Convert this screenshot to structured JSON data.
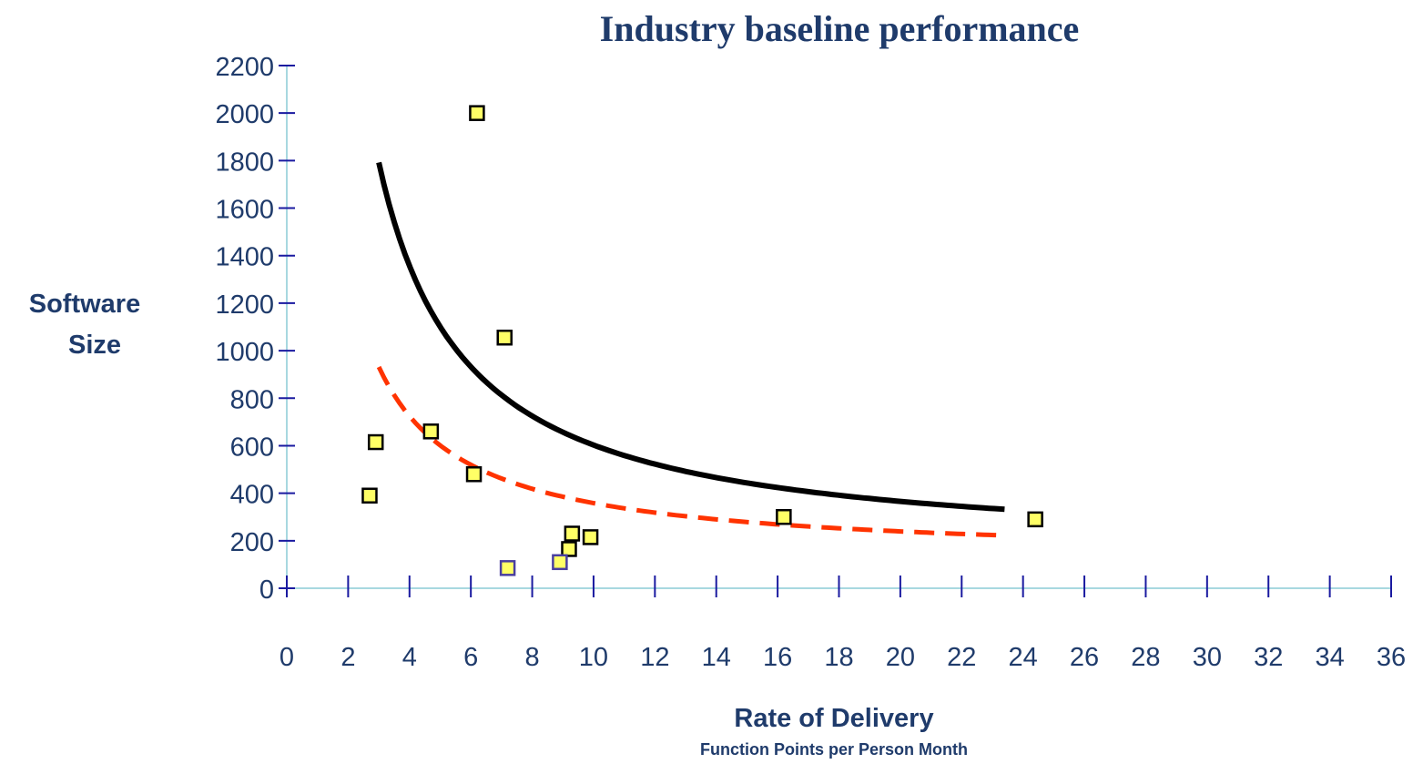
{
  "chart_data": {
    "type": "scatter",
    "title": "Industry baseline performance",
    "ylabel_line1": "Software",
    "ylabel_line2": "Size",
    "xlabel": "Rate of Delivery",
    "xlabel_sub": "Function Points per Person Month",
    "xlim": [
      0,
      36
    ],
    "ylim": [
      0,
      2200
    ],
    "x_ticks": [
      0,
      2,
      4,
      6,
      8,
      10,
      12,
      14,
      16,
      18,
      20,
      22,
      24,
      26,
      28,
      30,
      32,
      34,
      36
    ],
    "y_ticks": [
      0,
      200,
      400,
      600,
      800,
      1000,
      1200,
      1400,
      1600,
      1800,
      2000,
      2200
    ],
    "grid": false,
    "points": [
      {
        "x": 6.2,
        "y": 2000,
        "edge": "#000000"
      },
      {
        "x": 7.1,
        "y": 1055,
        "edge": "#000000"
      },
      {
        "x": 2.9,
        "y": 615,
        "edge": "#000000"
      },
      {
        "x": 4.7,
        "y": 660,
        "edge": "#000000"
      },
      {
        "x": 2.7,
        "y": 390,
        "edge": "#000000"
      },
      {
        "x": 6.1,
        "y": 480,
        "edge": "#000000"
      },
      {
        "x": 9.3,
        "y": 230,
        "edge": "#000000"
      },
      {
        "x": 9.9,
        "y": 215,
        "edge": "#000000"
      },
      {
        "x": 9.2,
        "y": 165,
        "edge": "#000000"
      },
      {
        "x": 16.2,
        "y": 300,
        "edge": "#000000"
      },
      {
        "x": 24.4,
        "y": 290,
        "edge": "#000000"
      },
      {
        "x": 7.2,
        "y": 85,
        "edge": "#4a3fa0"
      },
      {
        "x": 8.9,
        "y": 110,
        "edge": "#4a3fa0"
      }
    ],
    "curves": [
      {
        "style": "solid",
        "color": "#000000",
        "a": 5320,
        "b": 1.07,
        "c": 150,
        "x_from": 3.0,
        "x_to": 23.4
      },
      {
        "style": "dashed",
        "color": "#ff3300",
        "a": 2500,
        "b": 1.03,
        "c": 125,
        "x_from": 3.0,
        "x_to": 23.4
      }
    ],
    "colors": {
      "axis": "#a8d8e0",
      "tick_mark": "#1a1aa0",
      "text": "#1f3b6b",
      "marker_fill": "#ffff66"
    }
  }
}
